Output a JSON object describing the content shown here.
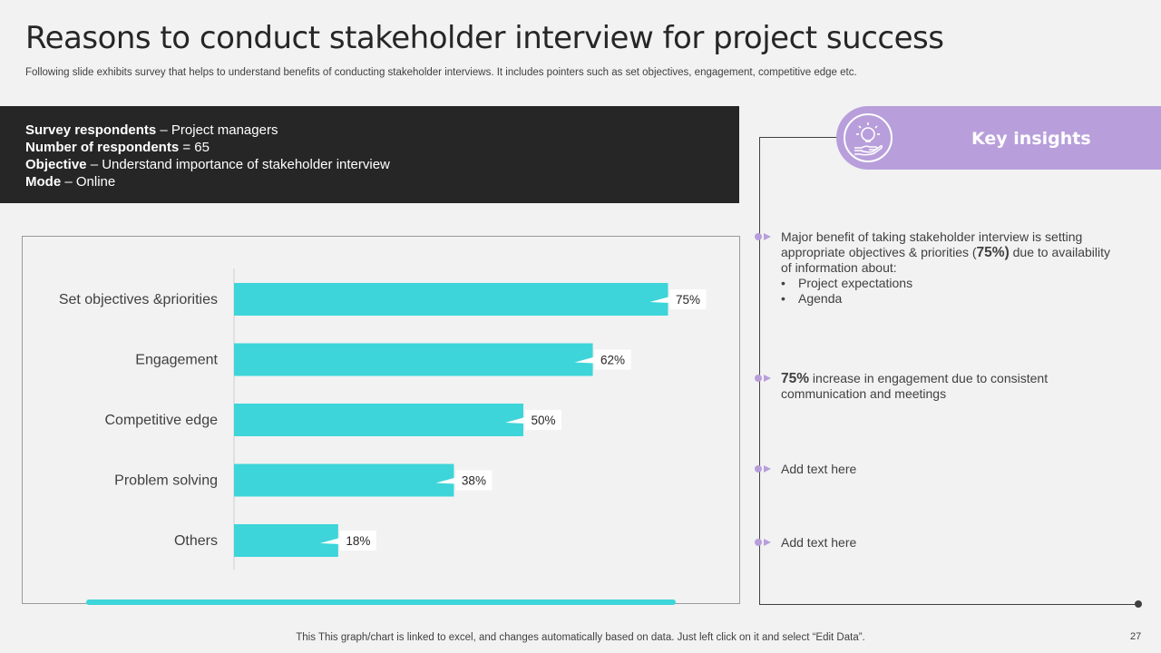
{
  "header": {
    "title": "Reasons to conduct stakeholder interview for project success",
    "subtitle": "Following slide exhibits survey that helps to understand benefits of conducting stakeholder interviews. It includes pointers such as set objectives, engagement, competitive edge etc."
  },
  "survey": {
    "respondents_label": "Survey respondents",
    "respondents_value": " – Project managers",
    "count_label": "Number of respondents",
    "count_value": " = 65",
    "objective_label": "Objective",
    "objective_value": " – Understand importance of stakeholder interview",
    "mode_label": "Mode",
    "mode_value": " – Online"
  },
  "chart_data": {
    "type": "bar",
    "orientation": "horizontal",
    "categories": [
      "Set objectives &priorities",
      "Engagement",
      "Competitive edge",
      "Problem solving",
      "Others"
    ],
    "values": [
      75,
      62,
      50,
      38,
      18
    ],
    "value_labels": [
      "75%",
      "62%",
      "50%",
      "38%",
      "18%"
    ],
    "xlim": [
      0,
      100
    ],
    "title": "",
    "xlabel": "",
    "ylabel": "",
    "grid": false,
    "bar_color": "#3dd5d9"
  },
  "insights": {
    "banner_label": "Key insights",
    "item1": {
      "text": "Major benefit of taking stakeholder interview is setting appropriate objectives & priorities (",
      "highlight": "75%)",
      "text_after": " due to availability of information about:",
      "bullets": [
        "Project expectations",
        "Agenda"
      ]
    },
    "item2": {
      "highlight": "75%",
      "text": " increase in engagement due to consistent communication and meetings"
    },
    "item3": {
      "text": "Add text here"
    },
    "item4": {
      "text": "Add text here"
    },
    "accent_color": "#b89fdb"
  },
  "footer": {
    "note": "This This graph/chart is linked to excel,  and changes automatically based on data. Just left click on it and select “Edit Data”.",
    "page_number": "27"
  }
}
